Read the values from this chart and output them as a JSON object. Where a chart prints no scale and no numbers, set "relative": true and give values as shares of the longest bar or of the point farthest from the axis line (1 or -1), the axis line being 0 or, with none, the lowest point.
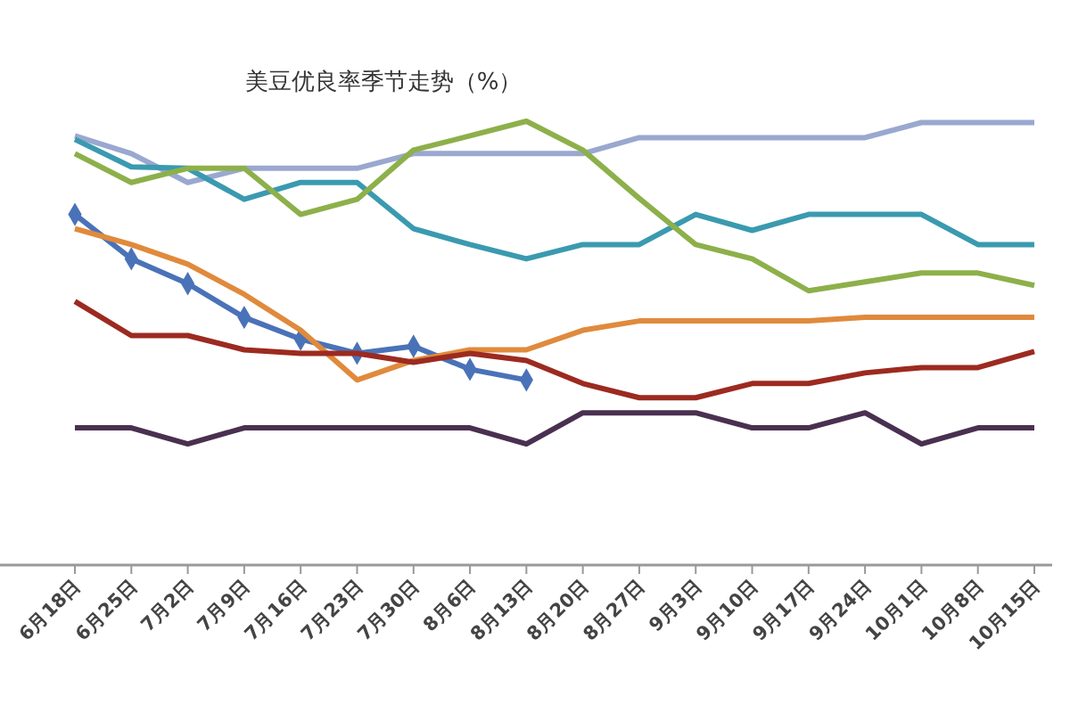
{
  "chart_data": {
    "type": "line",
    "title": "美豆优良率季节走势（%）",
    "relative": true,
    "grid": false,
    "categories": [
      "6月18日",
      "6月25日",
      "7月2日",
      "7月9日",
      "7月16日",
      "7月23日",
      "7月30日",
      "8月6日",
      "8月13日",
      "8月20日",
      "8月27日",
      "9月3日",
      "9月10日",
      "9月17日",
      "9月24日",
      "10月1日",
      "10月8日",
      "10月15日"
    ],
    "series": [
      {
        "color": "#9aa8d0",
        "marker": "none",
        "values": [
          0.967,
          0.927,
          0.862,
          0.894,
          0.894,
          0.894,
          0.927,
          0.927,
          0.927,
          0.927,
          0.963,
          0.963,
          0.963,
          0.963,
          0.963,
          0.997,
          0.997,
          0.997
        ]
      },
      {
        "color": "#3a9ab0",
        "marker": "none",
        "values": [
          0.959,
          0.897,
          0.894,
          0.824,
          0.862,
          0.862,
          0.758,
          0.722,
          0.69,
          0.722,
          0.722,
          0.79,
          0.754,
          0.79,
          0.79,
          0.79,
          0.722,
          0.722
        ]
      },
      {
        "color": "#8db04a",
        "marker": "none",
        "values": [
          0.927,
          0.862,
          0.894,
          0.894,
          0.79,
          0.824,
          0.935,
          0.967,
          1,
          0.935,
          0.826,
          0.722,
          0.69,
          0.618,
          0.638,
          0.658,
          0.658,
          0.63
        ]
      },
      {
        "color": "#4a72b8",
        "marker": "diamond",
        "values": [
          0.79,
          0.69,
          0.634,
          0.558,
          0.509,
          0.477,
          0.493,
          0.441,
          0.417,
          null,
          null,
          null,
          null,
          null,
          null,
          null,
          null,
          null
        ]
      },
      {
        "color": "#e08a3c",
        "marker": "none",
        "values": [
          0.758,
          0.722,
          0.678,
          0.61,
          0.529,
          0.417,
          0.461,
          0.485,
          0.485,
          0.529,
          0.55,
          0.55,
          0.55,
          0.55,
          0.558,
          0.558,
          0.558,
          0.558
        ]
      },
      {
        "color": "#9c2a20",
        "marker": "none",
        "values": [
          0.594,
          0.517,
          0.517,
          0.485,
          0.477,
          0.477,
          0.457,
          0.477,
          0.461,
          0.409,
          0.377,
          0.377,
          0.409,
          0.409,
          0.433,
          0.445,
          0.445,
          0.481
        ]
      },
      {
        "color": "#4a3050",
        "marker": "none",
        "values": [
          0.309,
          0.309,
          0.273,
          0.309,
          0.309,
          0.309,
          0.309,
          0.309,
          0.273,
          0.343,
          0.343,
          0.343,
          0.309,
          0.309,
          0.343,
          0.273,
          0.309,
          0.309
        ]
      }
    ]
  }
}
